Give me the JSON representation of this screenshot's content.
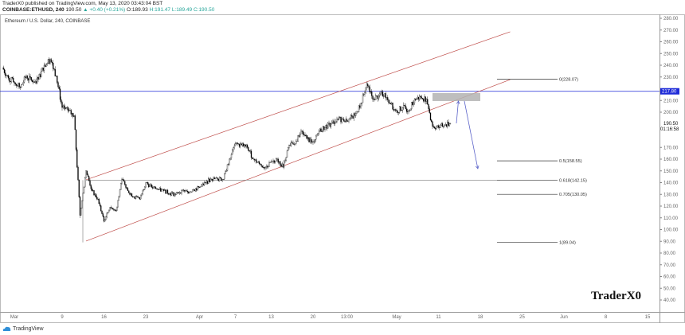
{
  "header": {
    "published": "TraderX0 published on TradingView.com, May 13, 2020 03:43:04 BST",
    "symbol": "COINBASE:ETHUSD, 240",
    "last": "190.50",
    "change": "▲ +0.40 (+0.21%)",
    "open": "O:189.93",
    "high": "H:191.47",
    "low": "L:189.49",
    "close": "C:190.50"
  },
  "legend": "Ethereum / U.S. Dollar, 240, COINBASE",
  "watermark": "TraderX0",
  "footer_logo": "TradingView",
  "chart_data": {
    "type": "candlestick",
    "title": "Ethereum / U.S. Dollar, 240, COINBASE",
    "ylim": [
      35,
      285
    ],
    "yticks": [
      280,
      270,
      260,
      250,
      240,
      230,
      210,
      200,
      170,
      160,
      150,
      140,
      130,
      120,
      110,
      100,
      90,
      80,
      70,
      60,
      50,
      40
    ],
    "y_tick_format": "2 decimals",
    "xticks": [
      {
        "label": "Mar",
        "date": "2020-03-01"
      },
      {
        "label": "9",
        "date": "2020-03-09"
      },
      {
        "label": "16",
        "date": "2020-03-16"
      },
      {
        "label": "23",
        "date": "2020-03-23"
      },
      {
        "label": "Apr",
        "date": "2020-04-01"
      },
      {
        "label": "7",
        "date": "2020-04-07"
      },
      {
        "label": "13",
        "date": "2020-04-13"
      },
      {
        "label": "20",
        "date": "2020-04-20"
      },
      {
        "label": "13:00",
        "date": "2020-04-25T16:00"
      },
      {
        "label": "May",
        "date": "2020-05-04"
      },
      {
        "label": "11",
        "date": "2020-05-11"
      },
      {
        "label": "18",
        "date": "2020-05-18"
      },
      {
        "label": "25",
        "date": "2020-05-25"
      },
      {
        "label": "Jun",
        "date": "2020-06-01"
      },
      {
        "label": "8",
        "date": "2020-06-08"
      },
      {
        "label": "15",
        "date": "2020-06-15"
      }
    ],
    "closes": [
      [
        "2020-02-28",
        238
      ],
      [
        "2020-02-29",
        229
      ],
      [
        "2020-03-01",
        225
      ],
      [
        "2020-03-02",
        221
      ],
      [
        "2020-03-03",
        231
      ],
      [
        "2020-03-04",
        226
      ],
      [
        "2020-03-05",
        228
      ],
      [
        "2020-03-06",
        240
      ],
      [
        "2020-03-07",
        245
      ],
      [
        "2020-03-08",
        231
      ],
      [
        "2020-03-09",
        204
      ],
      [
        "2020-03-10",
        201
      ],
      [
        "2020-03-11",
        197
      ],
      [
        "2020-03-12",
        112
      ],
      [
        "2020-03-13",
        150
      ],
      [
        "2020-03-14",
        133
      ],
      [
        "2020-03-15",
        126
      ],
      [
        "2020-03-16",
        107
      ],
      [
        "2020-03-17",
        119
      ],
      [
        "2020-03-18",
        116
      ],
      [
        "2020-03-19",
        143
      ],
      [
        "2020-03-20",
        133
      ],
      [
        "2020-03-21",
        128
      ],
      [
        "2020-03-22",
        126
      ],
      [
        "2020-03-23",
        140
      ],
      [
        "2020-03-24",
        136
      ],
      [
        "2020-03-25",
        134
      ],
      [
        "2020-03-26",
        133
      ],
      [
        "2020-03-27",
        131
      ],
      [
        "2020-03-28",
        130
      ],
      [
        "2020-03-29",
        133
      ],
      [
        "2020-03-30",
        132
      ],
      [
        "2020-03-31",
        134
      ],
      [
        "2020-04-01",
        136
      ],
      [
        "2020-04-02",
        140
      ],
      [
        "2020-04-03",
        143
      ],
      [
        "2020-04-04",
        143
      ],
      [
        "2020-04-05",
        143
      ],
      [
        "2020-04-06",
        160
      ],
      [
        "2020-04-07",
        173
      ],
      [
        "2020-04-08",
        172
      ],
      [
        "2020-04-09",
        170
      ],
      [
        "2020-04-10",
        160
      ],
      [
        "2020-04-11",
        156
      ],
      [
        "2020-04-12",
        153
      ],
      [
        "2020-04-13",
        158
      ],
      [
        "2020-04-14",
        160
      ],
      [
        "2020-04-15",
        153
      ],
      [
        "2020-04-16",
        172
      ],
      [
        "2020-04-17",
        173
      ],
      [
        "2020-04-18",
        184
      ],
      [
        "2020-04-19",
        177
      ],
      [
        "2020-04-20",
        175
      ],
      [
        "2020-04-21",
        184
      ],
      [
        "2020-04-22",
        187
      ],
      [
        "2020-04-23",
        190
      ],
      [
        "2020-04-24",
        194
      ],
      [
        "2020-04-25",
        194
      ],
      [
        "2020-04-26",
        194
      ],
      [
        "2020-04-27",
        197
      ],
      [
        "2020-04-28",
        207
      ],
      [
        "2020-04-29",
        224
      ],
      [
        "2020-04-30",
        211
      ],
      [
        "2020-05-01",
        214
      ],
      [
        "2020-05-02",
        216
      ],
      [
        "2020-05-03",
        207
      ],
      [
        "2020-05-04",
        201
      ],
      [
        "2020-05-05",
        204
      ],
      [
        "2020-05-06",
        202
      ],
      [
        "2020-05-07",
        211
      ],
      [
        "2020-05-08",
        213
      ],
      [
        "2020-05-09",
        211
      ],
      [
        "2020-05-10",
        188
      ],
      [
        "2020-05-11",
        187
      ],
      [
        "2020-05-12",
        189
      ],
      [
        "2020-05-13",
        190.5
      ]
    ],
    "last_price": {
      "value": 190.5,
      "label": "190.50",
      "countdown": "01:16:58"
    },
    "horizontal_line": {
      "value": 217.8,
      "label": "217.80",
      "color": "#1e2bd8"
    },
    "channel": {
      "color": "#c0504d",
      "lower": [
        [
          "2020-03-13",
          90.2
        ],
        [
          "2020-05-23",
          227.8
        ]
      ],
      "upper": [
        [
          "2020-03-13",
          142.4
        ],
        [
          "2020-05-23",
          268.5
        ]
      ]
    },
    "fib_retracement": {
      "color": "#333333",
      "anchor": [
        [
          "2020-03-13",
          142.15
        ],
        [
          "2020-03-13",
          89.04
        ]
      ],
      "levels": [
        {
          "label": "0(228.07)",
          "value": 228.07
        },
        {
          "label": "0.5(158.55)",
          "value": 158.55
        },
        {
          "label": "0.618(142.15)",
          "value": 142.15
        },
        {
          "label": "0.705(130.05)",
          "value": 130.05
        },
        {
          "label": "1(89.04)",
          "value": 89.04
        }
      ]
    },
    "resistance_zone": {
      "from": "2020-05-10",
      "to": "2020-05-18",
      "low": 209.5,
      "high": 216.3,
      "color": "#b3b3b3"
    },
    "projection_path": {
      "color": "#5b63c9",
      "points": [
        [
          "2020-05-14",
          190.5
        ],
        [
          "2020-05-14T08:00",
          209.5
        ],
        [
          "2020-05-15T08:00",
          209.5
        ],
        [
          "2020-05-17T14:00",
          151.9
        ]
      ]
    },
    "colors": {
      "up": "#000000",
      "down": "#000000",
      "axis_label_bg": "#1e2bd8"
    }
  }
}
